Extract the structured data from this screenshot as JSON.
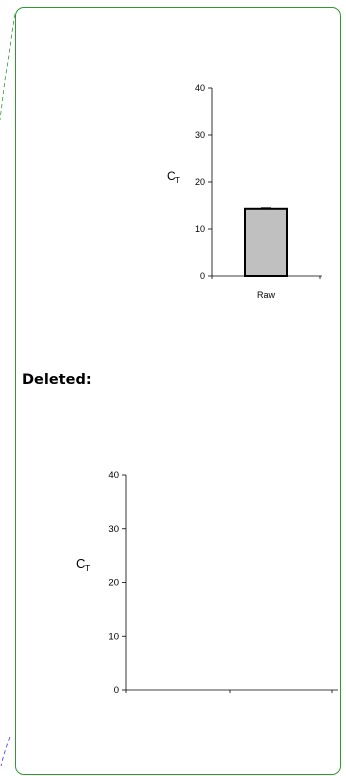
{
  "section_labels": {
    "deleted": "Deleted:"
  },
  "colors": {
    "balloon_border": "#2e9a2e",
    "bar_fill": "#c0c0c0",
    "connector_green": "#2e9a2e",
    "connector_blue": "#3a3ae0"
  },
  "chart_data": [
    {
      "type": "bar",
      "categories": [
        "Raw"
      ],
      "values": [
        14.3
      ],
      "error": [
        0.2
      ],
      "ylabel": {
        "main": "C",
        "sub": "T"
      },
      "ylim": [
        0,
        40
      ],
      "yticks": [
        0,
        10,
        20,
        30,
        40
      ],
      "grid": false
    },
    {
      "type": "bar",
      "categories": [],
      "values": [],
      "ylabel": {
        "main": "C",
        "sub": "T"
      },
      "ylim": [
        0,
        40
      ],
      "yticks": [
        0,
        10,
        20,
        30,
        40
      ],
      "grid": false
    }
  ]
}
